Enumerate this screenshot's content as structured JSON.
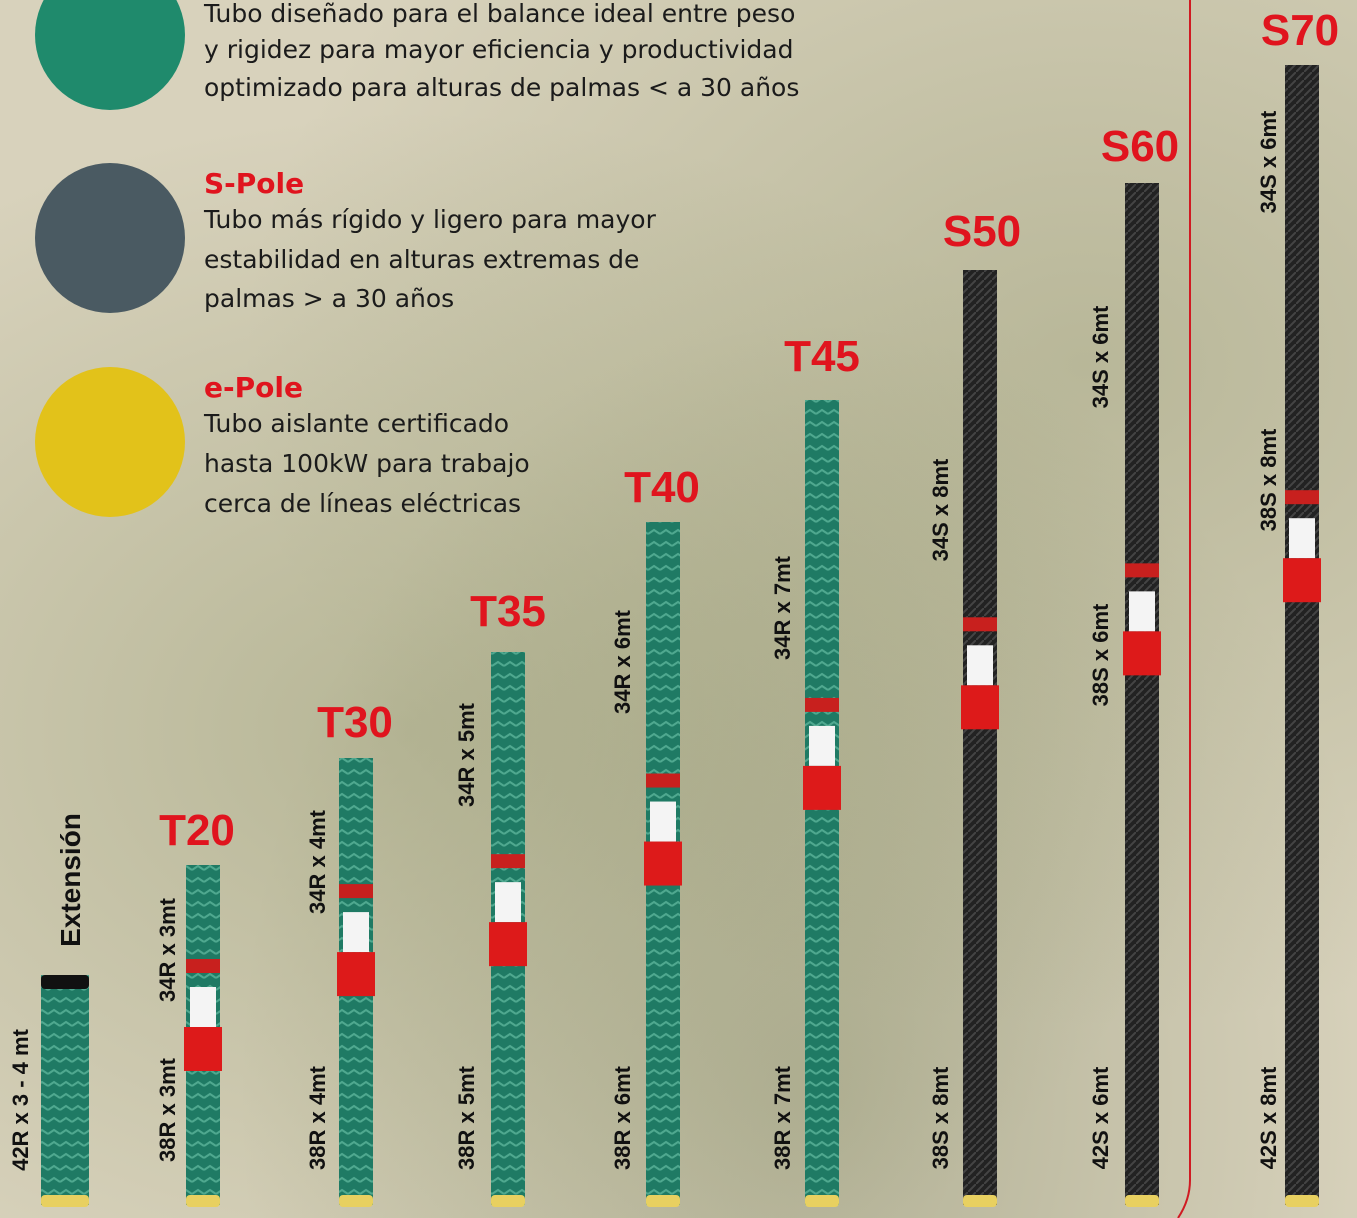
{
  "descriptions": [
    {
      "lines": [
        "Tubo diseñado para el balance ideal entre peso",
        "y rigidez para mayor eficiencia y productividad",
        "optimizado para alturas de palmas < a 30 años"
      ]
    },
    {
      "title": "S-Pole",
      "lines": [
        "Tubo más rígido y ligero para mayor",
        "estabilidad en alturas extremas de",
        "palmas > a 30 años"
      ]
    },
    {
      "title": "e-Pole",
      "lines": [
        "Tubo aislante certificado",
        "hasta 100kW para trabajo",
        "cerca de líneas eléctricas"
      ]
    }
  ],
  "poles": [
    {
      "name": "Extensión",
      "segments": [
        "42R x 3 - 4 mt"
      ]
    },
    {
      "name": "T20",
      "segments": [
        "34R x 3mt",
        "38R x 3mt"
      ]
    },
    {
      "name": "T30",
      "segments": [
        "34R x 4mt",
        "38R x 4mt"
      ]
    },
    {
      "name": "T35",
      "segments": [
        "34R x 5mt",
        "38R x 5mt"
      ]
    },
    {
      "name": "T40",
      "segments": [
        "34R x 6mt",
        "38R x 6mt"
      ]
    },
    {
      "name": "T45",
      "segments": [
        "34R x 7mt",
        "38R x 7mt"
      ]
    },
    {
      "name": "S50",
      "segments": [
        "34S x 8mt",
        "38S x 8mt"
      ]
    },
    {
      "name": "S60",
      "segments": [
        "34S x 6mt",
        "38S x 6mt",
        "42S x 6mt"
      ]
    },
    {
      "name": "S70",
      "segments": [
        "34S x 6mt",
        "38S x 8mt",
        "42S x 8mt"
      ]
    }
  ]
}
